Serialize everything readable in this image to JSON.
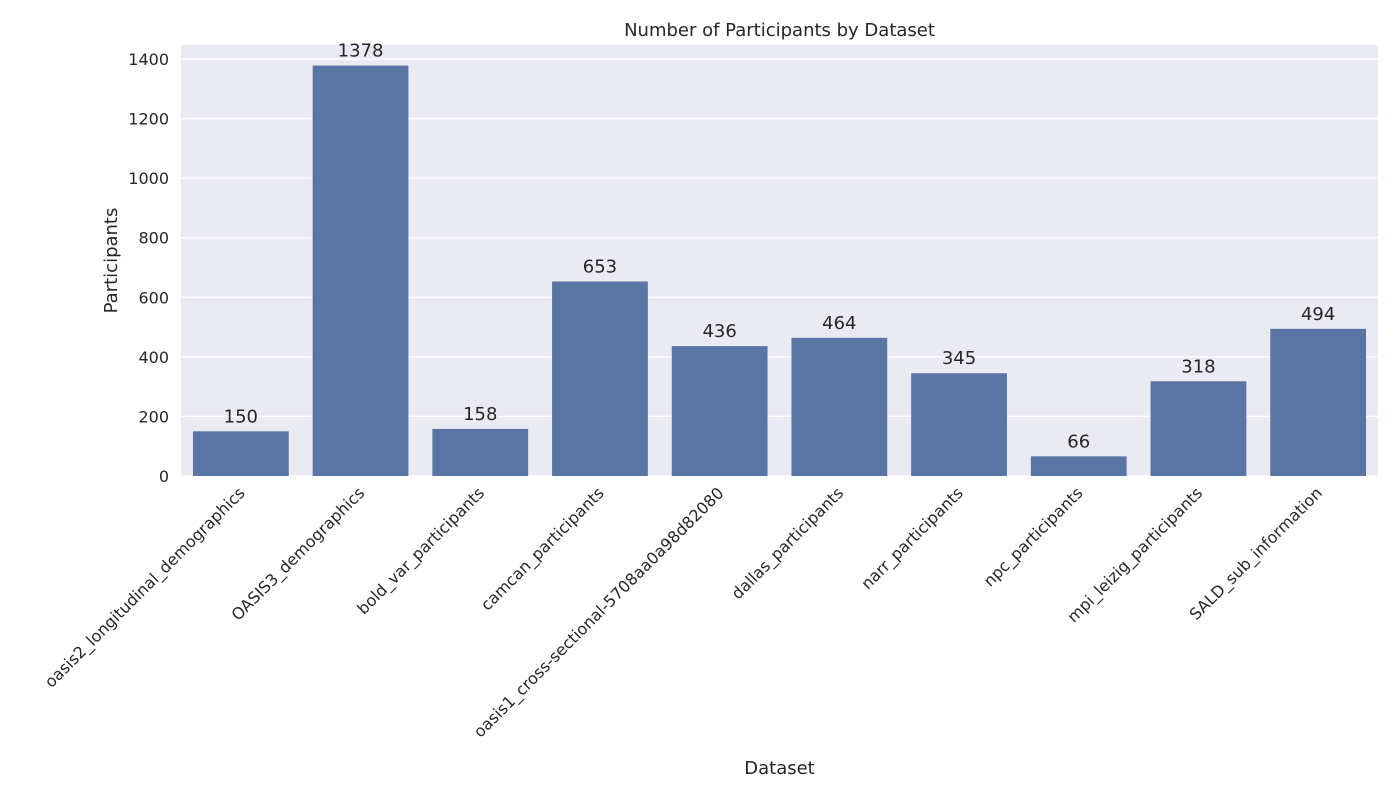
{
  "chart_data": {
    "type": "bar",
    "title": "Number of Participants by Dataset",
    "xlabel": "Dataset",
    "ylabel": "Participants",
    "categories": [
      "oasis2_longitudinal_demographics",
      "OASIS3_demographics",
      "bold_var_participants",
      "camcan_participants",
      "oasis1_cross-sectional-5708aa0a98d82080",
      "dallas_participants",
      "narr_participants",
      "npc_participants",
      "mpi_leizig_participants",
      "SALD_sub_information"
    ],
    "values": [
      150,
      1378,
      158,
      653,
      436,
      464,
      345,
      66,
      318,
      494
    ],
    "data_labels": [
      "150",
      "1378",
      "158",
      "653",
      "436",
      "464",
      "345",
      "66",
      "318",
      "494"
    ],
    "ylim": [
      0,
      1447
    ],
    "yticks": [
      0,
      200,
      400,
      600,
      800,
      1000,
      1200,
      1400
    ],
    "grid": true,
    "legend": "none",
    "colors": {
      "bar": "#5875a4",
      "plot_background": "#eaeaf2",
      "grid": "#ffffff",
      "text": "#262626"
    }
  }
}
